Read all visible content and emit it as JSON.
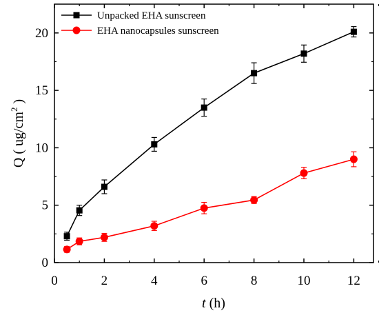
{
  "chart_data": {
    "type": "line",
    "xlabel": {
      "var": "t",
      "unit": " (h)"
    },
    "ylabel": {
      "main": "Q ( ug/cm",
      "sup": "2",
      "close": " )"
    },
    "xlim": [
      0,
      13
    ],
    "ylim": [
      0,
      22
    ],
    "xticks": [
      0,
      2,
      4,
      6,
      8,
      10,
      12
    ],
    "yticks": [
      0,
      5,
      10,
      15,
      20
    ],
    "grid": false,
    "legend_position": "top-left",
    "series": [
      {
        "name": "Unpacked EHA sunscreen",
        "color": "#000000",
        "marker": "square",
        "x": [
          0.5,
          1,
          2,
          4,
          6,
          8,
          10,
          12
        ],
        "y": [
          2.3,
          4.55,
          6.6,
          10.3,
          13.5,
          16.5,
          18.2,
          20.1
        ],
        "err": [
          0.35,
          0.45,
          0.6,
          0.6,
          0.75,
          0.9,
          0.75,
          0.45
        ]
      },
      {
        "name": "EHA nanocapsules sunscreen",
        "color": "#ff0000",
        "marker": "circle",
        "x": [
          0.5,
          1,
          2,
          4,
          6,
          8,
          10,
          12
        ],
        "y": [
          1.15,
          1.85,
          2.2,
          3.2,
          4.75,
          5.45,
          7.8,
          9.0
        ],
        "err": [
          0.25,
          0.3,
          0.35,
          0.4,
          0.5,
          0.3,
          0.5,
          0.65
        ]
      }
    ]
  }
}
